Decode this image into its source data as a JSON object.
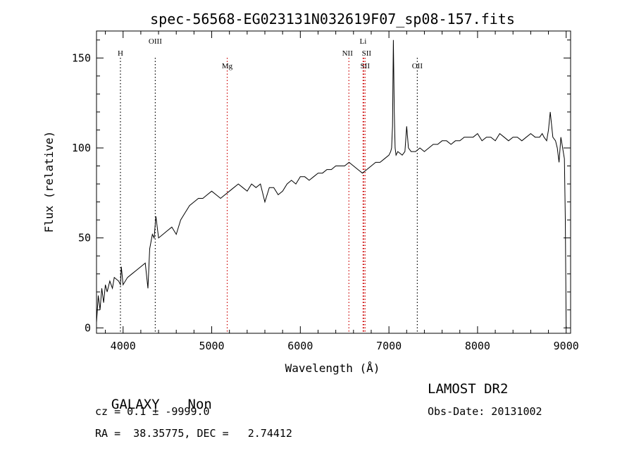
{
  "chart_data": {
    "type": "line",
    "title": "spec-56568-EG023131N032619F07_sp08-157.fits",
    "xlabel": "Wavelength (Å)",
    "ylabel": "Flux (relative)",
    "xlim": [
      3700,
      9050
    ],
    "ylim": [
      -3,
      165
    ],
    "xticks": [
      4000,
      5000,
      6000,
      7000,
      8000,
      9000
    ],
    "yticks": [
      0,
      50,
      100,
      150
    ],
    "tick_labels_x": [
      "4000",
      "5000",
      "6000",
      "7000",
      "8000",
      "9000"
    ],
    "tick_labels_y": [
      "0",
      "50",
      "100",
      "150"
    ],
    "grid": false,
    "line_color": "#000000",
    "marker_color": "#cc0000",
    "spectrum": {
      "name": "",
      "x": [
        3700,
        3720,
        3740,
        3760,
        3780,
        3800,
        3820,
        3850,
        3880,
        3900,
        3950,
        3970,
        3980,
        4000,
        4050,
        4100,
        4150,
        4200,
        4250,
        4280,
        4300,
        4330,
        4350,
        4370,
        4400,
        4450,
        4500,
        4550,
        4600,
        4650,
        4700,
        4750,
        4800,
        4850,
        4900,
        4950,
        5000,
        5050,
        5100,
        5150,
        5200,
        5250,
        5300,
        5350,
        5400,
        5450,
        5500,
        5550,
        5600,
        5650,
        5700,
        5750,
        5800,
        5850,
        5900,
        5950,
        6000,
        6050,
        6100,
        6150,
        6200,
        6250,
        6300,
        6350,
        6400,
        6450,
        6500,
        6550,
        6600,
        6650,
        6700,
        6750,
        6800,
        6850,
        6900,
        6950,
        7000,
        7020,
        7030,
        7040,
        7050,
        7060,
        7070,
        7080,
        7100,
        7150,
        7180,
        7200,
        7220,
        7250,
        7300,
        7350,
        7400,
        7450,
        7500,
        7550,
        7600,
        7650,
        7700,
        7750,
        7800,
        7850,
        7900,
        7950,
        8000,
        8050,
        8100,
        8150,
        8200,
        8250,
        8300,
        8350,
        8400,
        8450,
        8500,
        8550,
        8600,
        8650,
        8700,
        8730,
        8750,
        8780,
        8800,
        8820,
        8850,
        8880,
        8900,
        8920,
        8940,
        8960,
        8980,
        8990,
        9000
      ],
      "y": [
        3,
        18,
        10,
        22,
        14,
        24,
        20,
        26,
        22,
        28,
        26,
        24,
        34,
        24,
        28,
        30,
        32,
        34,
        36,
        22,
        44,
        52,
        50,
        62,
        50,
        52,
        54,
        56,
        52,
        60,
        64,
        68,
        70,
        72,
        72,
        74,
        76,
        74,
        72,
        74,
        76,
        78,
        80,
        78,
        76,
        80,
        78,
        80,
        70,
        78,
        78,
        74,
        76,
        80,
        82,
        80,
        84,
        84,
        82,
        84,
        86,
        86,
        88,
        88,
        90,
        90,
        90,
        92,
        90,
        88,
        86,
        88,
        90,
        92,
        92,
        94,
        96,
        98,
        100,
        112,
        160,
        120,
        100,
        96,
        98,
        96,
        98,
        112,
        100,
        98,
        98,
        100,
        98,
        100,
        102,
        102,
        104,
        104,
        102,
        104,
        104,
        106,
        106,
        106,
        108,
        104,
        106,
        106,
        104,
        108,
        106,
        104,
        106,
        106,
        104,
        106,
        108,
        106,
        106,
        108,
        106,
        104,
        110,
        120,
        106,
        104,
        100,
        92,
        106,
        100,
        94,
        60,
        0
      ]
    },
    "lines": [
      {
        "label": "H",
        "x": 3970,
        "color": "#000000"
      },
      {
        "label": "OIII",
        "x": 4363,
        "color": "#000000"
      },
      {
        "label": "Mg",
        "x": 5175,
        "color": "#cc0000"
      },
      {
        "label": "NII",
        "x": 6548,
        "color": "#cc0000"
      },
      {
        "label": "Li",
        "x": 6708,
        "color": "#cc0000"
      },
      {
        "label": "SII",
        "x": 6716,
        "color": "#cc0000"
      },
      {
        "label": "SII",
        "x": 6731,
        "color": "#cc0000"
      },
      {
        "label": "OII",
        "x": 7320,
        "color": "#000000"
      }
    ]
  },
  "info": {
    "class": "GALAXY",
    "subclass": "Non",
    "cz": "cz = 0.1 ± -9999.0",
    "coords": "RA =  38.35775, DEC =   2.74412",
    "survey": "LAMOST DR2",
    "obs_date": "Obs-Date: 20131002"
  }
}
